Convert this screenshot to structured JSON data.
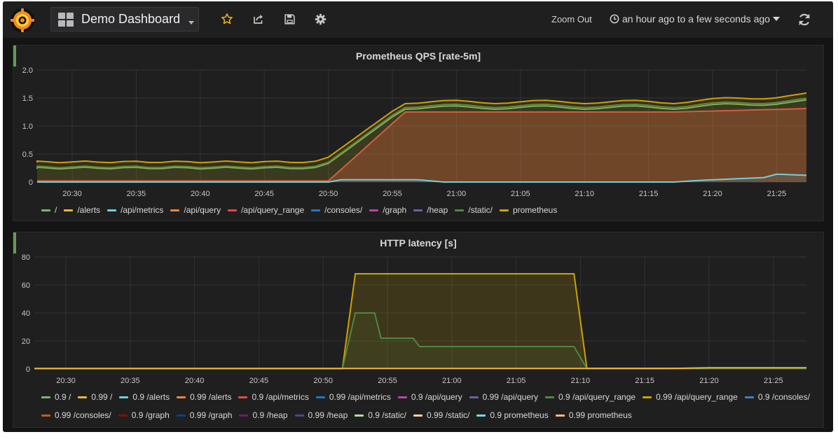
{
  "navbar": {
    "dashboard_title": "Demo Dashboard",
    "zoom_out_label": "Zoom Out",
    "time_range_label": "an hour ago to a few seconds ago",
    "colors": {
      "star": "#f0b429",
      "icon": "#c8c8c8"
    }
  },
  "panels": [
    {
      "title": "Prometheus QPS [rate-5m]",
      "chart_data": {
        "type": "area",
        "title": "Prometheus QPS [rate-5m]",
        "x": [
          "20:30",
          "20:35",
          "20:40",
          "20:45",
          "20:50",
          "20:55",
          "21:00",
          "21:05",
          "21:10",
          "21:15",
          "21:20",
          "21:25"
        ],
        "ylim": [
          0,
          2.0
        ],
        "yticks": [
          "0",
          "0.5",
          "1.0",
          "1.5",
          "2.0"
        ],
        "grid": true,
        "legend": "bottom",
        "series": [
          {
            "name": "/",
            "color": "#7eb26d"
          },
          {
            "name": "/alerts",
            "color": "#eab839"
          },
          {
            "name": "/api/metrics",
            "color": "#6ed0e0"
          },
          {
            "name": "/api/query",
            "color": "#ef843c"
          },
          {
            "name": "/api/query_range",
            "color": "#e24d42"
          },
          {
            "name": "/consoles/",
            "color": "#1f78c1"
          },
          {
            "name": "/graph",
            "color": "#ba43a9"
          },
          {
            "name": "/heap",
            "color": "#705da0"
          },
          {
            "name": "/static/",
            "color": "#508642"
          },
          {
            "name": "prometheus",
            "color": "#cca300"
          }
        ]
      }
    },
    {
      "title": "HTTP latency [s]",
      "chart_data": {
        "type": "area",
        "title": "HTTP latency [s]",
        "x": [
          "20:30",
          "20:35",
          "20:40",
          "20:45",
          "20:50",
          "20:55",
          "21:00",
          "21:05",
          "21:10",
          "21:15",
          "21:20",
          "21:25"
        ],
        "ylim": [
          0,
          80
        ],
        "yticks": [
          "0",
          "20",
          "40",
          "60",
          "80"
        ],
        "grid": true,
        "legend": "bottom",
        "series": [
          {
            "name": "0.9 /",
            "color": "#7eb26d"
          },
          {
            "name": "0.99 /",
            "color": "#eab839"
          },
          {
            "name": "0.9 /alerts",
            "color": "#6ed0e0"
          },
          {
            "name": "0.99 /alerts",
            "color": "#ef843c"
          },
          {
            "name": "0.9 /api/metrics",
            "color": "#e24d42"
          },
          {
            "name": "0.99 /api/metrics",
            "color": "#1f78c1"
          },
          {
            "name": "0.9 /api/query",
            "color": "#ba43a9"
          },
          {
            "name": "0.99 /api/query",
            "color": "#705da0"
          },
          {
            "name": "0.9 /api/query_range",
            "color": "#508642"
          },
          {
            "name": "0.99 /api/query_range",
            "color": "#cca300"
          },
          {
            "name": "0.9 /consoles/",
            "color": "#447ebc"
          },
          {
            "name": "0.99 /consoles/",
            "color": "#c15c17"
          },
          {
            "name": "0.9 /graph",
            "color": "#890f02"
          },
          {
            "name": "0.99 /graph",
            "color": "#0a437c"
          },
          {
            "name": "0.9 /heap",
            "color": "#6d1f62"
          },
          {
            "name": "0.99 /heap",
            "color": "#584477"
          },
          {
            "name": "0.9 /static/",
            "color": "#b7dbab"
          },
          {
            "name": "0.99 /static/",
            "color": "#f4d598"
          },
          {
            "name": "0.9 prometheus",
            "color": "#70dbed"
          },
          {
            "name": "0.99 prometheus",
            "color": "#f9ba8f"
          }
        ]
      }
    }
  ]
}
